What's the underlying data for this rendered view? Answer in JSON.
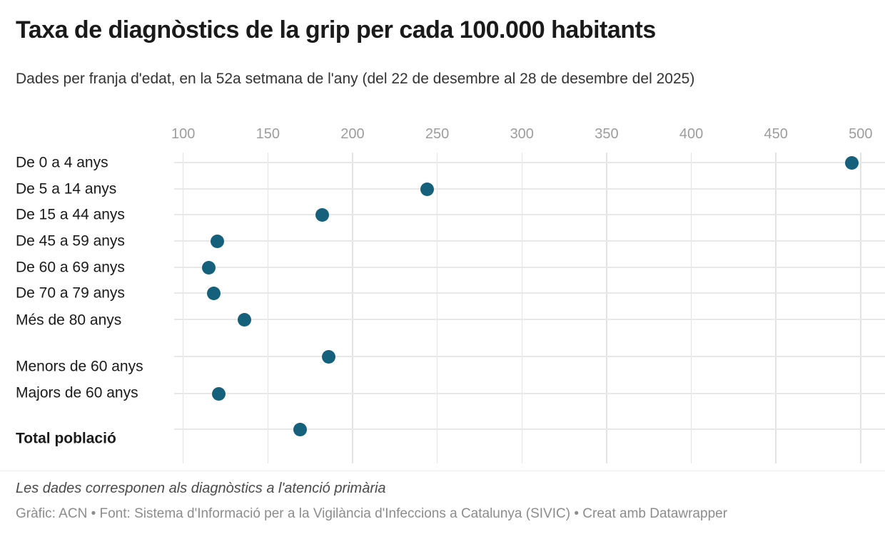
{
  "chart_data": {
    "type": "scatter",
    "title": "Taxa de diagnòstics de la grip per cada 100.000 habitants",
    "subtitle": "Dades per franja d'edat, en la 52a setmana de l'any (del 22 de desembre al 28 de desembre del 2025)",
    "categories": [
      "De 0 a 4 anys",
      "De 5 a 14 anys",
      "De 15 a 44 anys",
      "De 45 a 59 anys",
      "De 60 a 69 anys",
      "De 70 a 79 anys",
      "Més de 80 anys",
      "Menors de 60 anys",
      "Majors de 60 anys",
      "Total població"
    ],
    "values": [
      495,
      244,
      182,
      120,
      115,
      118,
      136,
      186,
      121,
      169
    ],
    "bold_category": "Total població",
    "groups": [
      7,
      2,
      1
    ],
    "xlabel": "",
    "ylabel": "",
    "x_ticks": [
      100,
      150,
      200,
      250,
      300,
      350,
      400,
      450,
      500
    ],
    "xlim": [
      95,
      515
    ],
    "grid": "on",
    "legend": "none",
    "axis_position": "top"
  },
  "colors": {
    "dot": "#15607a",
    "gridline": "#e3e3e3",
    "row_line": "#e8e8e8",
    "tick_text": "#9d9d9d",
    "label_text": "#1a1a1a",
    "background": "#ffffff"
  },
  "footer": {
    "note": "Les dades corresponen als diagnòstics a l'atenció primària",
    "byline": "Gràfic: ACN • Font: Sistema d'Informació per a la Vigilància d'Infeccions a Catalunya (SIVIC) • Creat amb Datawrapper"
  }
}
